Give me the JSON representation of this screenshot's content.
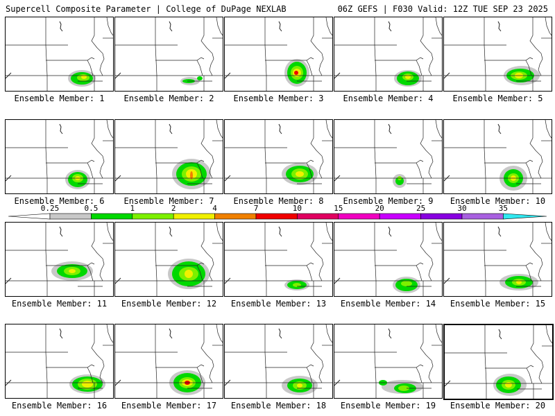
{
  "header": {
    "left": "Supercell Composite Parameter | College of DuPage NEXLAB",
    "right": "06Z GEFS | F030 Valid: 12Z TUE SEP 23 2025"
  },
  "colorbar": {
    "labels": [
      "0.25",
      "0.5",
      "1",
      "2",
      "4",
      "7",
      "10",
      "15",
      "20",
      "25",
      "30",
      "35"
    ],
    "colors": [
      "#c8c8c8",
      "#00d800",
      "#7cf000",
      "#f0f000",
      "#f08000",
      "#f00000",
      "#e00060",
      "#f000c0",
      "#c800ff",
      "#8800e0",
      "#a860e0",
      "#30e8f0"
    ]
  },
  "members": [
    {
      "label": "Ensemble Member: 1"
    },
    {
      "label": "Ensemble Member: 2"
    },
    {
      "label": "Ensemble Member: 3"
    },
    {
      "label": "Ensemble Member: 4"
    },
    {
      "label": "Ensemble Member: 5"
    },
    {
      "label": "Ensemble Member: 6"
    },
    {
      "label": "Ensemble Member: 7"
    },
    {
      "label": "Ensemble Member: 8"
    },
    {
      "label": "Ensemble Member: 9"
    },
    {
      "label": "Ensemble Member: 10"
    },
    {
      "label": "Ensemble Member: 11"
    },
    {
      "label": "Ensemble Member: 12"
    },
    {
      "label": "Ensemble Member: 13"
    },
    {
      "label": "Ensemble Member: 14"
    },
    {
      "label": "Ensemble Member: 15"
    },
    {
      "label": "Ensemble Member: 16"
    },
    {
      "label": "Ensemble Member: 17"
    },
    {
      "label": "Ensemble Member: 18"
    },
    {
      "label": "Ensemble Member: 19"
    },
    {
      "label": "Ensemble Member: 20"
    }
  ]
}
